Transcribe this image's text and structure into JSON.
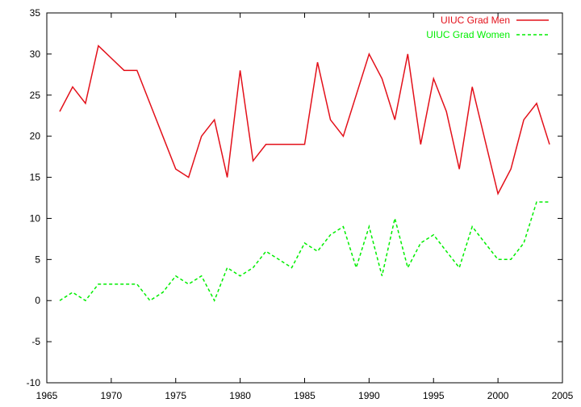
{
  "chart_data": {
    "type": "line",
    "title": "",
    "xlabel": "",
    "ylabel": "",
    "xlim": [
      1965,
      2005
    ],
    "ylim": [
      -10,
      35
    ],
    "grid": false,
    "legend_position": "top-right",
    "x_ticks": [
      "1965",
      "1970",
      "1975",
      "1980",
      "1985",
      "1990",
      "1995",
      "2000",
      "2005"
    ],
    "y_ticks": [
      "-10",
      "-5",
      "0",
      "5",
      "10",
      "15",
      "20",
      "25",
      "30",
      "35"
    ],
    "x": [
      1966,
      1967,
      1968,
      1969,
      1970,
      1971,
      1972,
      1973,
      1974,
      1975,
      1976,
      1977,
      1978,
      1979,
      1980,
      1981,
      1982,
      1983,
      1984,
      1985,
      1986,
      1987,
      1988,
      1989,
      1990,
      1991,
      1992,
      1993,
      1994,
      1995,
      1996,
      1997,
      1998,
      1999,
      2000,
      2001,
      2002,
      2003,
      2004
    ],
    "series": [
      {
        "name": "UIUC Grad Men",
        "color": "#e3101a",
        "dash": "solid",
        "values": [
          23,
          26,
          24,
          31,
          29.5,
          28,
          28,
          24,
          20,
          16,
          15,
          20,
          22,
          15,
          28,
          17,
          19,
          19,
          19,
          19,
          29,
          22,
          20,
          25,
          30,
          27,
          22,
          30,
          19,
          27,
          23,
          16,
          26,
          19.5,
          13,
          16,
          22,
          24,
          19
        ]
      },
      {
        "name": "UIUC Grad Women",
        "color": "#00ee00",
        "dash": "dashed",
        "values": [
          0,
          1,
          0,
          2,
          2,
          2,
          2,
          0,
          1,
          3,
          2,
          3,
          0,
          4,
          3,
          4,
          6,
          5,
          4,
          7,
          6,
          8,
          9,
          4,
          9,
          3,
          10,
          4,
          7,
          8,
          6,
          4,
          9,
          7,
          5,
          5,
          7,
          12,
          12
        ]
      }
    ]
  }
}
